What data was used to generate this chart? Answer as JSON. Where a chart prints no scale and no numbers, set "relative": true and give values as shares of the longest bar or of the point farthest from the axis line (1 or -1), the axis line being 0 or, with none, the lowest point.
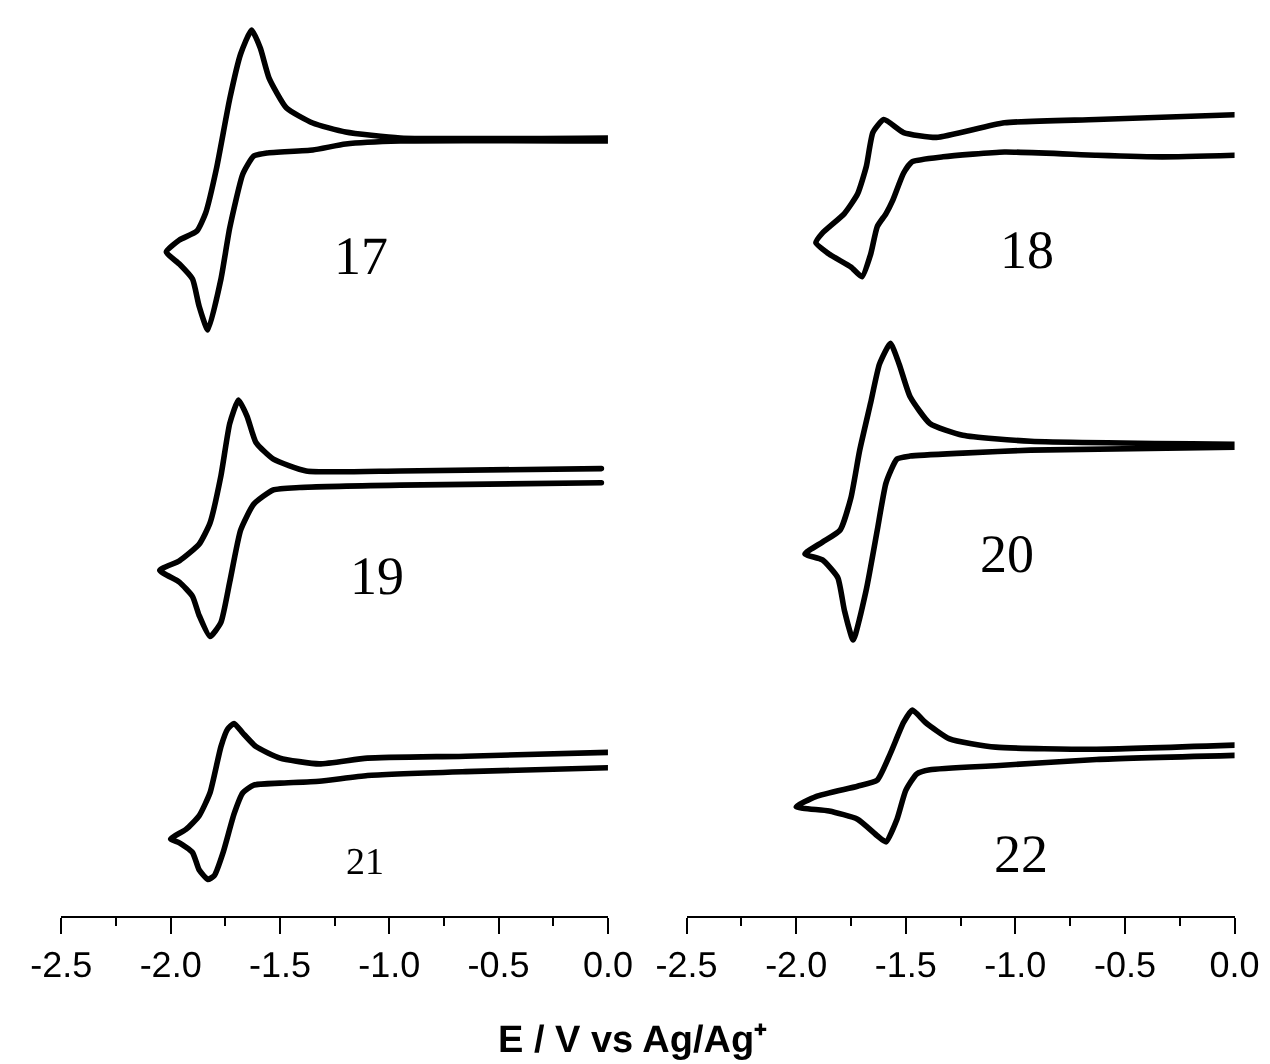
{
  "chart_data": [
    {
      "type": "line",
      "relative": true,
      "xlim": [
        -2.5,
        0.0
      ],
      "tick_labels": false,
      "annotations": [
        "17"
      ],
      "series": [
        {
          "color": "#000000",
          "x": [
            0.0,
            -0.95,
            -1.2,
            -1.35,
            -1.56,
            -1.62,
            -1.67,
            -1.73,
            -1.77,
            -1.83,
            -1.87,
            -1.9,
            -1.96,
            -2.02,
            -1.96,
            -1.88,
            -1.84,
            -1.79,
            -1.73,
            -1.68,
            -1.63,
            -1.59,
            -1.55,
            -1.47,
            -1.35,
            -1.2,
            -0.95,
            0.0
          ],
          "values": [
            0.63,
            0.63,
            0.62,
            0.6,
            0.59,
            0.58,
            0.52,
            0.34,
            0.17,
            0.0,
            0.08,
            0.17,
            0.22,
            0.26,
            0.3,
            0.33,
            0.39,
            0.54,
            0.77,
            0.92,
            1.0,
            0.94,
            0.84,
            0.74,
            0.69,
            0.66,
            0.64,
            0.64
          ]
        }
      ]
    },
    {
      "type": "line",
      "relative": true,
      "xlim": [
        -2.5,
        0.0
      ],
      "tick_labels": false,
      "annotations": [
        "18"
      ],
      "series": [
        {
          "color": "#000000",
          "x": [
            0.0,
            -0.33,
            -0.63,
            -1.05,
            -1.33,
            -1.47,
            -1.51,
            -1.56,
            -1.59,
            -1.63,
            -1.66,
            -1.7,
            -1.75,
            -1.85,
            -1.91,
            -1.88,
            -1.78,
            -1.72,
            -1.68,
            -1.65,
            -1.6,
            -1.51,
            -1.36,
            -1.05,
            -0.63,
            0.0
          ],
          "values": [
            0.75,
            0.74,
            0.75,
            0.77,
            0.74,
            0.71,
            0.64,
            0.47,
            0.39,
            0.31,
            0.14,
            0.0,
            0.06,
            0.14,
            0.21,
            0.27,
            0.39,
            0.51,
            0.68,
            0.89,
            0.97,
            0.89,
            0.86,
            0.95,
            0.97,
            1.0
          ]
        }
      ]
    },
    {
      "type": "line",
      "relative": true,
      "xlim": [
        -2.5,
        0.0
      ],
      "tick_labels": false,
      "annotations": [
        "19"
      ],
      "series": [
        {
          "color": "#000000",
          "x": [
            -0.03,
            -0.95,
            -1.41,
            -1.53,
            -1.62,
            -1.68,
            -1.73,
            -1.77,
            -1.82,
            -1.87,
            -1.9,
            -1.96,
            -2.05,
            -1.96,
            -1.87,
            -1.82,
            -1.77,
            -1.73,
            -1.69,
            -1.65,
            -1.61,
            -1.53,
            -1.38,
            -0.95,
            -0.03
          ],
          "values": [
            0.65,
            0.64,
            0.63,
            0.62,
            0.56,
            0.45,
            0.23,
            0.06,
            0.0,
            0.09,
            0.17,
            0.23,
            0.28,
            0.32,
            0.39,
            0.48,
            0.68,
            0.9,
            1.0,
            0.93,
            0.82,
            0.75,
            0.7,
            0.7,
            0.71
          ]
        }
      ]
    },
    {
      "type": "line",
      "relative": true,
      "xlim": [
        -2.5,
        0.0
      ],
      "tick_labels": false,
      "annotations": [
        "20"
      ],
      "series": [
        {
          "color": "#000000",
          "x": [
            0.0,
            -0.93,
            -1.24,
            -1.48,
            -1.54,
            -1.59,
            -1.63,
            -1.68,
            -1.74,
            -1.78,
            -1.81,
            -1.88,
            -1.96,
            -1.88,
            -1.8,
            -1.75,
            -1.71,
            -1.66,
            -1.62,
            -1.57,
            -1.53,
            -1.48,
            -1.39,
            -1.24,
            -0.93,
            0.0
          ],
          "values": [
            0.65,
            0.64,
            0.63,
            0.62,
            0.61,
            0.53,
            0.37,
            0.17,
            0.0,
            0.1,
            0.21,
            0.27,
            0.29,
            0.33,
            0.37,
            0.48,
            0.64,
            0.8,
            0.93,
            1.0,
            0.93,
            0.82,
            0.73,
            0.69,
            0.67,
            0.66
          ]
        }
      ]
    },
    {
      "type": "line",
      "relative": true,
      "xlim": [
        -2.5,
        0.0
      ],
      "xticks": [
        -2.5,
        {
          "value": -2.25,
          "label": null
        },
        {
          "value": -2.0,
          "label": "-2.0"
        },
        {
          "value": -1.75,
          "label": null
        },
        -1.5,
        {
          "value": -1.25,
          "label": null
        },
        {
          "value": -1.0,
          "label": "-1.0"
        },
        {
          "value": -0.75,
          "label": null
        },
        -0.5,
        {
          "value": -0.25,
          "label": null
        },
        {
          "value": 0.0,
          "label": "0.0"
        }
      ],
      "tick_labels": "x",
      "xlabel": "E / V vs Ag/Ag⁺",
      "annotations": [
        "21"
      ],
      "series": [
        {
          "color": "#000000",
          "x": [
            0.0,
            -0.65,
            -1.1,
            -1.32,
            -1.5,
            -1.62,
            -1.67,
            -1.71,
            -1.76,
            -1.8,
            -1.83,
            -1.87,
            -1.9,
            -1.96,
            -2.0,
            -1.93,
            -1.87,
            -1.82,
            -1.77,
            -1.74,
            -1.71,
            -1.67,
            -1.61,
            -1.5,
            -1.32,
            -1.1,
            -0.65,
            0.0
          ],
          "values": [
            0.77,
            0.75,
            0.73,
            0.7,
            0.69,
            0.68,
            0.64,
            0.53,
            0.33,
            0.21,
            0.19,
            0.24,
            0.33,
            0.38,
            0.4,
            0.45,
            0.52,
            0.64,
            0.88,
            0.97,
            1.0,
            0.95,
            0.88,
            0.82,
            0.79,
            0.82,
            0.83,
            0.85
          ]
        }
      ]
    },
    {
      "type": "line",
      "relative": true,
      "xlim": [
        -2.5,
        0.0
      ],
      "xticks": [
        -2.5,
        {
          "value": -2.25,
          "label": null
        },
        {
          "value": -2.0,
          "label": "-2.0"
        },
        {
          "value": -1.75,
          "label": null
        },
        -1.5,
        {
          "value": -1.25,
          "label": null
        },
        {
          "value": -1.0,
          "label": "-1.0"
        },
        {
          "value": -0.75,
          "label": null
        },
        -0.5,
        {
          "value": -0.25,
          "label": null
        },
        {
          "value": 0.0,
          "label": "0.0"
        }
      ],
      "tick_labels": "x",
      "annotations": [
        "22"
      ],
      "series": [
        {
          "color": "#000000",
          "x": [
            0.0,
            -0.63,
            -1.09,
            -1.39,
            -1.45,
            -1.5,
            -1.54,
            -1.59,
            -1.63,
            -1.72,
            -1.85,
            -2.0,
            -1.91,
            -1.72,
            -1.63,
            -1.57,
            -1.51,
            -1.47,
            -1.41,
            -1.3,
            -1.09,
            -0.63,
            0.0
          ],
          "values": [
            0.78,
            0.76,
            0.73,
            0.71,
            0.69,
            0.61,
            0.47,
            0.36,
            0.39,
            0.47,
            0.51,
            0.53,
            0.58,
            0.63,
            0.66,
            0.79,
            0.94,
            1.0,
            0.94,
            0.86,
            0.82,
            0.81,
            0.83
          ]
        }
      ]
    }
  ]
}
